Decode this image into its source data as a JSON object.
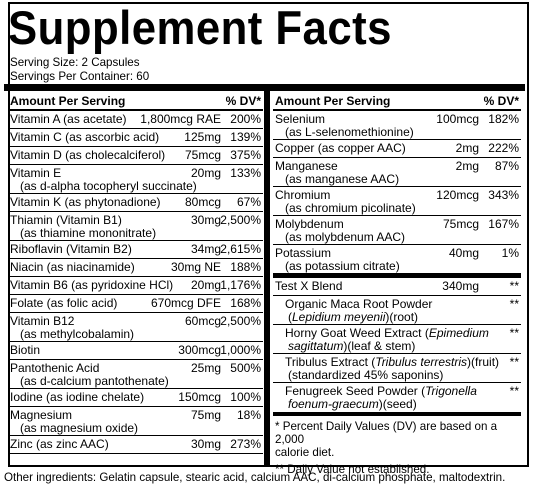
{
  "title": "Supplement Facts",
  "serving_size": "Serving Size: 2 Capsules",
  "servings_per_container": "Servings Per Container: 60",
  "header": {
    "amount_per_serving": "Amount Per Serving",
    "dv": "% DV*"
  },
  "left_rows": [
    {
      "name": "Vitamin A (as acetate)",
      "sub": "",
      "amount": "1,800mcg RAE",
      "dv": "200%"
    },
    {
      "name": "Vitamin C (as ascorbic acid)",
      "sub": "",
      "amount": "125mg",
      "dv": "139%"
    },
    {
      "name": "Vitamin D (as cholecalciferol)",
      "sub": "",
      "amount": "75mcg",
      "dv": "375%"
    },
    {
      "name": "Vitamin E",
      "sub": "(as d-alpha tocopheryl succinate)",
      "amount": "20mg",
      "dv": "133%"
    },
    {
      "name": "Vitamin K (as phytonadione)",
      "sub": "",
      "amount": "80mcg",
      "dv": "67%"
    },
    {
      "name": "Thiamin (Vitamin B1)",
      "sub": "(as thiamine mononitrate)",
      "amount": "30mg",
      "dv": "2,500%"
    },
    {
      "name": "Riboflavin (Vitamin B2)",
      "sub": "",
      "amount": "34mg",
      "dv": "2,615%"
    },
    {
      "name": "Niacin (as niacinamide)",
      "sub": "",
      "amount": "30mg NE",
      "dv": "188%"
    },
    {
      "name": "Vitamin B6 (as pyridoxine HCl)",
      "sub": "",
      "amount": "20mg",
      "dv": "1,176%"
    },
    {
      "name": "Folate (as folic acid)",
      "sub": "",
      "amount": "670mcg DFE",
      "dv": "168%"
    },
    {
      "name": "Vitamin B12",
      "sub": "(as methylcobalamin)",
      "amount": "60mcg",
      "dv": "2,500%"
    },
    {
      "name": "Biotin",
      "sub": "",
      "amount": "300mcg",
      "dv": "1,000%"
    },
    {
      "name": "Pantothenic Acid",
      "sub": "(as d-calcium pantothenate)",
      "amount": "25mg",
      "dv": "500%"
    },
    {
      "name": "Iodine (as iodine chelate)",
      "sub": "",
      "amount": "150mcg",
      "dv": "100%"
    },
    {
      "name": "Magnesium",
      "sub": "(as magnesium oxide)",
      "amount": "75mg",
      "dv": "18%"
    },
    {
      "name": "Zinc (as zinc AAC)",
      "sub": "",
      "amount": "30mg",
      "dv": "273%"
    }
  ],
  "right_rows": [
    {
      "name": "Selenium",
      "sub": "(as L-selenomethionine)",
      "amount": "100mcg",
      "dv": "182%"
    },
    {
      "name": "Copper (as copper AAC)",
      "sub": "",
      "amount": "2mg",
      "dv": "222%"
    },
    {
      "name": "Manganese",
      "sub": "(as manganese AAC)",
      "amount": "2mg",
      "dv": "87%"
    },
    {
      "name": "Chromium",
      "sub": "(as chromium picolinate)",
      "amount": "120mcg",
      "dv": "343%"
    },
    {
      "name": "Molybdenum",
      "sub": "(as molybdenum AAC)",
      "amount": "75mcg",
      "dv": "167%"
    },
    {
      "name": "Potassium",
      "sub": "(as potassium citrate)",
      "amount": "40mg",
      "dv": "1%"
    }
  ],
  "blend": {
    "name": "Test X Blend",
    "amount": "340mg",
    "dv": "**",
    "items": [
      {
        "line1_a": "Organic Maca Root Powder",
        "line1_i": "",
        "line2_a": "(",
        "line2_i": "Lepidium meyenii",
        "line2_b": ")(root)",
        "dv": "**"
      },
      {
        "line1_a": "Horny Goat Weed Extract (",
        "line1_i": "Epimedium",
        "line2_a": "",
        "line2_i": "sagittatum",
        "line2_b": ")(leaf & stem)",
        "dv": "**"
      },
      {
        "line1_a": "Tribulus Extract (",
        "line1_i": "Tribulus terrestris",
        "line1_b": ")(fruit)",
        "line2_a": "(standardized 45% saponins)",
        "line2_i": "",
        "line2_b": "",
        "dv": "**"
      },
      {
        "line1_a": "Fenugreek Seed Powder (",
        "line1_i": "Trigonella",
        "line2_a": "",
        "line2_i": "foenum-graecum",
        "line2_b": ")(seed)",
        "dv": "**"
      }
    ]
  },
  "footnotes": {
    "dv_note": "* Percent Daily Values (DV) are based on a 2,000 calorie diet.",
    "dv_note_line1": "* Percent Daily Values (DV) are based on a 2,000",
    "dv_note_line2": "calorie diet.",
    "not_established": "** Daily Value not established."
  },
  "other_ingredients": "Other ingredients: Gelatin capsule, stearic acid, calcium AAC, di-calcium phosphate, maltodextrin."
}
